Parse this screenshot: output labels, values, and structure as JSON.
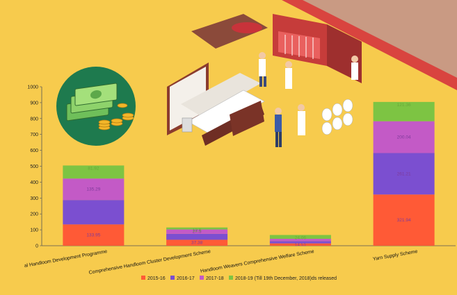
{
  "chart_data": {
    "type": "bar",
    "stacked": true,
    "categories": [
      "National Handloom Development Programme",
      "Comprehensive Handloom Cluster Development Scheme",
      "Handloom Weavers Comprehensive Welfare Scheme",
      "Yarn Supply Scheme"
    ],
    "displayed_categories": [
      "al Handloom Development Programme",
      "Comprehensive Handloom Cluster Development Scheme",
      "Handloom Weavers Comprehensive Welfare Scheme",
      "Yarn Supply Scheme"
    ],
    "series": [
      {
        "name": "2015-16",
        "color": "#FF5A36",
        "values": [
          133.95,
          37.38,
          14.51,
          321.94
        ],
        "labels": [
          "133.95",
          "37.38",
          "14.51",
          "321.94"
        ]
      },
      {
        "name": "2016-17",
        "color": "#7B4FD0",
        "values": [
          153.5,
          37.5,
          14.5,
          261.21
        ],
        "labels": [
          "",
          "",
          "",
          "261.21"
        ]
      },
      {
        "name": "2017-18",
        "color": "#C35AC6",
        "values": [
          135.29,
          27.5,
          14.5,
          200.04
        ],
        "labels": [
          "135.29",
          "27.5",
          "",
          "200.04"
        ]
      },
      {
        "name": "2018-19 (Till 19th December, 2018)ds released",
        "color": "#7DC443",
        "values": [
          81.92,
          12.5,
          24.06,
          121.36
        ],
        "labels": [
          "81.92",
          "12.5",
          "24.06",
          "121.36"
        ]
      }
    ],
    "ylim": [
      0,
      1000
    ],
    "yticks": [
      0,
      100,
      200,
      300,
      400,
      500,
      600,
      700,
      800,
      900,
      1000
    ],
    "xlabel": "",
    "ylabel": "",
    "title": "",
    "grid": false,
    "legend": "bottom",
    "colors": {
      "background": "#F7CB4D",
      "axis": "#555555",
      "corner_stripe": "#D9443F",
      "corner_fill": "#C99A83"
    }
  },
  "illustration": {
    "description_icon": "textile-factory-illustration",
    "money_icon": "money-stack-icon"
  }
}
